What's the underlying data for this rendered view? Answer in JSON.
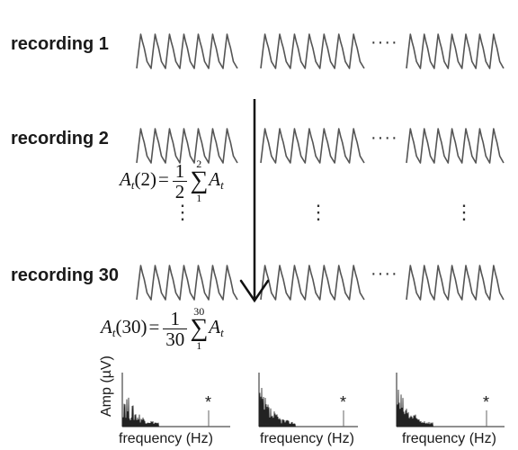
{
  "recordings": [
    {
      "label": "recording 1",
      "dots": "····"
    },
    {
      "label": "recording 2",
      "dots": "····"
    },
    {
      "label": "recording 30",
      "dots": "····"
    }
  ],
  "vertical_dots": "⋮",
  "formula_2": {
    "lhs": "A",
    "sub": "t",
    "arg": "(2)",
    "eq": "=",
    "num": "1",
    "den": "2",
    "sum_top": "2",
    "sum_bottom": "1",
    "rhs": "A",
    "rhs_sub": "t"
  },
  "formula_30": {
    "lhs": "A",
    "sub": "t",
    "arg": "(30)",
    "eq": "=",
    "num": "1",
    "den": "30",
    "sum_top": "30",
    "sum_bottom": "1",
    "rhs": "A",
    "rhs_sub": "t"
  },
  "spectrum": {
    "ylabel": "Amp (µV)",
    "xlabel": "frequency (Hz)",
    "marker": "*",
    "panels": 3
  },
  "colors": {
    "waveform": "#555555",
    "arrow": "#111111",
    "spectrum": "#222222"
  }
}
